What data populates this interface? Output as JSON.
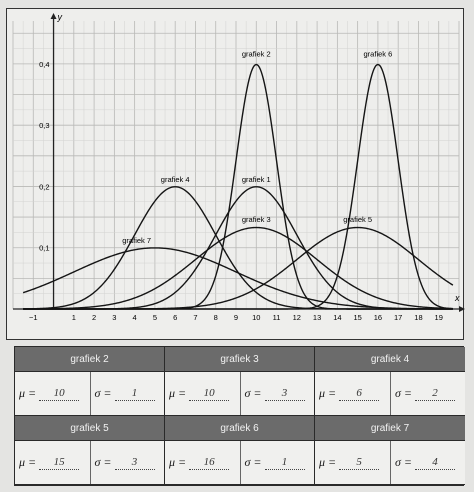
{
  "chart_data": {
    "type": "line",
    "xlabel": "x",
    "ylabel": "y",
    "xlim": [
      -2,
      20
    ],
    "ylim": [
      0,
      0.47
    ],
    "x_ticks": [
      -1,
      1,
      2,
      3,
      4,
      5,
      6,
      7,
      8,
      9,
      10,
      11,
      12,
      13,
      14,
      15,
      16,
      17,
      18,
      19
    ],
    "x_tick_labels": [
      "−1",
      "1",
      "2",
      "3",
      "4",
      "5",
      "6",
      "7",
      "8",
      "9",
      "10",
      "11",
      "12",
      "13",
      "14",
      "15",
      "16",
      "17",
      "18",
      "19"
    ],
    "y_ticks": [
      0.1,
      0.2,
      0.3,
      0.4
    ],
    "y_tick_labels": [
      "0,1",
      "0,2",
      "0,3",
      "0,4"
    ],
    "grid": true,
    "series": [
      {
        "name": "grafiek 1",
        "mu": 10,
        "sigma": 2,
        "label_at": [
          10,
          0.207
        ]
      },
      {
        "name": "grafiek 2",
        "mu": 10,
        "sigma": 1,
        "label_at": [
          10,
          0.412
        ]
      },
      {
        "name": "grafiek 3",
        "mu": 10,
        "sigma": 3,
        "label_at": [
          10,
          0.142
        ]
      },
      {
        "name": "grafiek 4",
        "mu": 6,
        "sigma": 2,
        "label_at": [
          6,
          0.207
        ]
      },
      {
        "name": "grafiek 5",
        "mu": 15,
        "sigma": 3,
        "label_at": [
          15,
          0.142
        ]
      },
      {
        "name": "grafiek 6",
        "mu": 16,
        "sigma": 1,
        "label_at": [
          16,
          0.412
        ]
      },
      {
        "name": "grafiek 7",
        "mu": 5,
        "sigma": 4,
        "label_at": [
          4.1,
          0.108
        ]
      }
    ]
  },
  "table": [
    {
      "title": "grafiek 2",
      "mu": "10",
      "sigma": "1"
    },
    {
      "title": "grafiek 3",
      "mu": "10",
      "sigma": "3"
    },
    {
      "title": "grafiek 4",
      "mu": "6",
      "sigma": "2"
    },
    {
      "title": "grafiek 5",
      "mu": "15",
      "sigma": "3"
    },
    {
      "title": "grafiek 6",
      "mu": "16",
      "sigma": "1"
    },
    {
      "title": "grafiek 7",
      "mu": "5",
      "sigma": "4"
    }
  ],
  "symbols": {
    "mu": "μ =",
    "sigma": "σ ="
  }
}
